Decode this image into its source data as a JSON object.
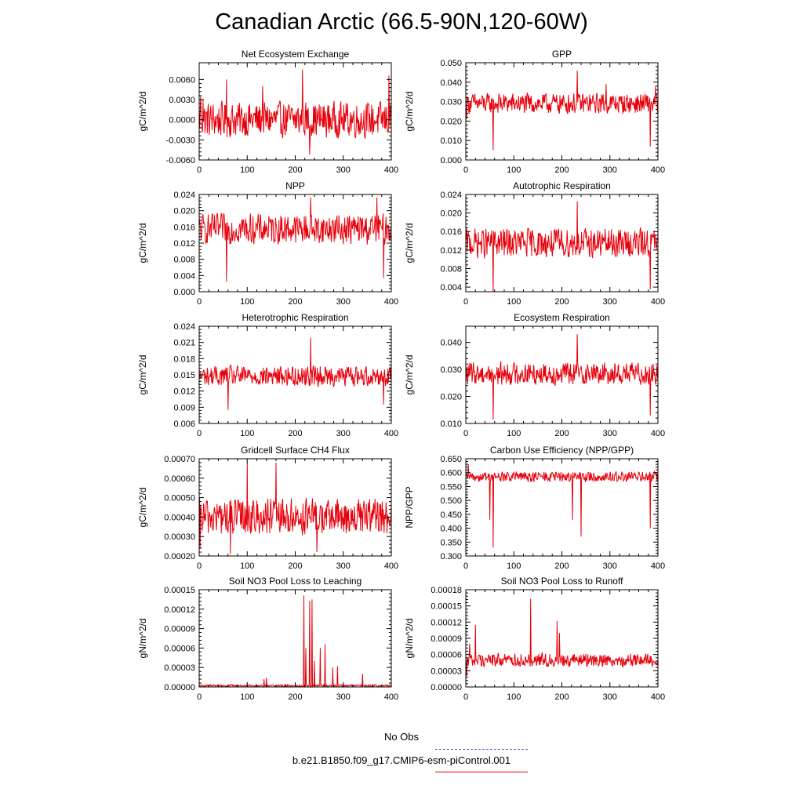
{
  "title": "Canadian Arctic (66.5-90N,120-60W)",
  "legend": {
    "obs_label": "No Obs",
    "obs_color": "#4444ee",
    "model_label": "b.e21.B1850.f09_g17.CMIP6-esm-piControl.001",
    "model_color": "#e8000b"
  },
  "chart_data": [
    {
      "type": "line",
      "title": "Net Ecosystem Exchange",
      "ylabel": "gC/m^2/d",
      "xlim": [
        0,
        400
      ],
      "ylim": [
        -0.006,
        0.0085
      ],
      "yticks": [
        -0.006,
        -0.003,
        0.0,
        0.003,
        0.006
      ],
      "ytick_labels": [
        "-0.0060",
        "-0.0030",
        "0.0000",
        "0.0030",
        "0.0060"
      ],
      "xticks": [
        0,
        100,
        200,
        300,
        400
      ],
      "xtick_labels": [
        "0",
        "100",
        "200",
        "300",
        "400"
      ],
      "series": [
        {
          "values": {
            "baseline": 0.0,
            "noise": 0.0025,
            "spikes": [
              [
                3,
                0.0035
              ],
              [
                8,
                0.003
              ],
              [
                57,
                0.006
              ],
              [
                132,
                0.005
              ],
              [
                215,
                0.0075
              ],
              [
                230,
                -0.0052
              ],
              [
                395,
                0.0066
              ]
            ]
          }
        }
      ]
    },
    {
      "type": "line",
      "title": "GPP",
      "ylabel": "gC/m^2/d",
      "xlim": [
        0,
        400
      ],
      "ylim": [
        0.0,
        0.05
      ],
      "yticks": [
        0.0,
        0.01,
        0.02,
        0.03,
        0.04,
        0.05
      ],
      "ytick_labels": [
        "0.000",
        "0.010",
        "0.020",
        "0.030",
        "0.040",
        "0.050"
      ],
      "xticks": [
        0,
        100,
        200,
        300,
        400
      ],
      "xtick_labels": [
        "0",
        "100",
        "200",
        "300",
        "400"
      ],
      "series": [
        {
          "values": {
            "baseline": 0.029,
            "noise": 0.005,
            "spikes": [
              [
                2,
                0.021
              ],
              [
                57,
                0.005
              ],
              [
                232,
                0.046
              ],
              [
                292,
                0.039
              ],
              [
                384,
                0.007
              ],
              [
                395,
                0.038
              ]
            ]
          }
        }
      ]
    },
    {
      "type": "line",
      "title": "NPP",
      "ylabel": "gC/m^2/d",
      "xlim": [
        0,
        400
      ],
      "ylim": [
        0.0,
        0.024
      ],
      "yticks": [
        0.0,
        0.004,
        0.008,
        0.012,
        0.016,
        0.02,
        0.024
      ],
      "ytick_labels": [
        "0.000",
        "0.004",
        "0.008",
        "0.012",
        "0.016",
        "0.020",
        "0.024"
      ],
      "xticks": [
        0,
        100,
        200,
        300,
        400
      ],
      "xtick_labels": [
        "0",
        "100",
        "200",
        "300",
        "400"
      ],
      "series": [
        {
          "values": {
            "baseline": 0.0155,
            "noise": 0.0035,
            "spikes": [
              [
                57,
                0.0025
              ],
              [
                232,
                0.0233
              ],
              [
                370,
                0.0233
              ],
              [
                384,
                0.0034
              ]
            ]
          }
        }
      ]
    },
    {
      "type": "line",
      "title": "Autotrophic Respiration",
      "ylabel": "gC/m^2/d",
      "xlim": [
        0,
        400
      ],
      "ylim": [
        0.003,
        0.024
      ],
      "yticks": [
        0.004,
        0.008,
        0.012,
        0.016,
        0.02,
        0.024
      ],
      "ytick_labels": [
        "0.004",
        "0.008",
        "0.012",
        "0.016",
        "0.020",
        "0.024"
      ],
      "xticks": [
        0,
        100,
        200,
        300,
        400
      ],
      "xtick_labels": [
        "0",
        "100",
        "200",
        "300",
        "400"
      ],
      "series": [
        {
          "values": {
            "baseline": 0.0135,
            "noise": 0.003,
            "spikes": [
              [
                57,
                0.003
              ],
              [
                232,
                0.0225
              ],
              [
                384,
                0.0035
              ]
            ]
          }
        }
      ]
    },
    {
      "type": "line",
      "title": "Heterotrophic Respiration",
      "ylabel": "gC/m^2/d",
      "xlim": [
        0,
        400
      ],
      "ylim": [
        0.006,
        0.024
      ],
      "yticks": [
        0.006,
        0.009,
        0.012,
        0.015,
        0.018,
        0.021,
        0.024
      ],
      "ytick_labels": [
        "0.006",
        "0.009",
        "0.012",
        "0.015",
        "0.018",
        "0.021",
        "0.024"
      ],
      "xticks": [
        0,
        100,
        200,
        300,
        400
      ],
      "xtick_labels": [
        "0",
        "100",
        "200",
        "300",
        "400"
      ],
      "series": [
        {
          "values": {
            "baseline": 0.0148,
            "noise": 0.0018,
            "spikes": [
              [
                60,
                0.0085
              ],
              [
                232,
                0.0219
              ],
              [
                384,
                0.0095
              ]
            ]
          }
        }
      ]
    },
    {
      "type": "line",
      "title": "Ecosystem Respiration",
      "ylabel": "gC/m^2/d",
      "xlim": [
        0,
        400
      ],
      "ylim": [
        0.01,
        0.046
      ],
      "yticks": [
        0.01,
        0.02,
        0.03,
        0.04
      ],
      "ytick_labels": [
        "0.010",
        "0.020",
        "0.030",
        "0.040"
      ],
      "xticks": [
        0,
        100,
        200,
        300,
        400
      ],
      "xtick_labels": [
        "0",
        "100",
        "200",
        "300",
        "400"
      ],
      "series": [
        {
          "values": {
            "baseline": 0.0285,
            "noise": 0.004,
            "spikes": [
              [
                57,
                0.0115
              ],
              [
                232,
                0.043
              ],
              [
                384,
                0.013
              ]
            ]
          }
        }
      ]
    },
    {
      "type": "line",
      "title": "Gridcell Surface CH4 Flux",
      "ylabel": "gC/m^2/d",
      "xlim": [
        0,
        400
      ],
      "ylim": [
        0.0002,
        0.0007
      ],
      "yticks": [
        0.0002,
        0.0003,
        0.0004,
        0.0005,
        0.0006,
        0.0007
      ],
      "ytick_labels": [
        "0.00020",
        "0.00030",
        "0.00040",
        "0.00050",
        "0.00060",
        "0.00070"
      ],
      "xticks": [
        0,
        100,
        200,
        300,
        400
      ],
      "xtick_labels": [
        "0",
        "100",
        "200",
        "300",
        "400"
      ],
      "series": [
        {
          "values": {
            "baseline": 0.0004,
            "noise": 9e-05,
            "spikes": [
              [
                2,
                0.00024
              ],
              [
                65,
                0.00021
              ],
              [
                100,
                0.00068
              ],
              [
                160,
                0.00068
              ],
              [
                245,
                0.00022
              ]
            ]
          }
        }
      ]
    },
    {
      "type": "line",
      "title": "Carbon Use Efficiency (NPP/GPP)",
      "ylabel": "NPP/GPP",
      "xlim": [
        0,
        400
      ],
      "ylim": [
        0.3,
        0.65
      ],
      "yticks": [
        0.3,
        0.35,
        0.4,
        0.45,
        0.5,
        0.55,
        0.6,
        0.65
      ],
      "ytick_labels": [
        "0.300",
        "0.350",
        "0.400",
        "0.450",
        "0.500",
        "0.550",
        "0.600",
        "0.650"
      ],
      "xticks": [
        0,
        100,
        200,
        300,
        400
      ],
      "xtick_labels": [
        "0",
        "100",
        "200",
        "300",
        "400"
      ],
      "series": [
        {
          "values": {
            "baseline": 0.585,
            "noise": 0.018,
            "spikes": [
              [
                5,
                0.63
              ],
              [
                57,
                0.33
              ],
              [
                50,
                0.43
              ],
              [
                240,
                0.37
              ],
              [
                384,
                0.4
              ],
              [
                222,
                0.43
              ]
            ]
          }
        }
      ]
    },
    {
      "type": "line",
      "title": "Soil NO3 Pool Loss to Leaching",
      "ylabel": "gN/m^2/d",
      "xlim": [
        0,
        400
      ],
      "ylim": [
        0.0,
        0.00015
      ],
      "yticks": [
        0.0,
        3e-05,
        6e-05,
        9e-05,
        0.00012,
        0.00015
      ],
      "ytick_labels": [
        "0.00000",
        "0.00003",
        "0.00006",
        "0.00009",
        "0.00012",
        "0.00015"
      ],
      "xticks": [
        0,
        100,
        200,
        300,
        400
      ],
      "xtick_labels": [
        "0",
        "100",
        "200",
        "300",
        "400"
      ],
      "series": [
        {
          "values": {
            "baseline": 2e-06,
            "noise": 1.5e-06,
            "spikes": [
              [
                135,
                1.2e-05
              ],
              [
                140,
                1.4e-05
              ],
              [
                218,
                0.000141
              ],
              [
                222,
                6e-05
              ],
              [
                230,
                0.000133
              ],
              [
                235,
                0.000135
              ],
              [
                240,
                4e-05
              ],
              [
                252,
                6e-05
              ],
              [
                262,
                6.6e-05
              ],
              [
                278,
                3e-05
              ],
              [
                288,
                3.2e-05
              ],
              [
                340,
                2e-05
              ]
            ]
          }
        }
      ]
    },
    {
      "type": "line",
      "title": "Soil NO3 Pool Loss to Runoff",
      "ylabel": "gN/m^2/d",
      "xlim": [
        0,
        400
      ],
      "ylim": [
        0.0,
        0.00018
      ],
      "yticks": [
        0.0,
        3e-05,
        6e-05,
        9e-05,
        0.00012,
        0.00015,
        0.00018
      ],
      "ytick_labels": [
        "0.00000",
        "0.00003",
        "0.00006",
        "0.00009",
        "0.00012",
        "0.00015",
        "0.00018"
      ],
      "xticks": [
        0,
        100,
        200,
        300,
        400
      ],
      "xtick_labels": [
        "0",
        "100",
        "200",
        "300",
        "400"
      ],
      "series": [
        {
          "values": {
            "baseline": 5e-05,
            "noise": 1.2e-05,
            "spikes": [
              [
                2,
                2e-05
              ],
              [
                8,
                8e-05
              ],
              [
                20,
                0.000115
              ],
              [
                135,
                0.000163
              ],
              [
                190,
                0.000122
              ],
              [
                195,
                0.0001
              ]
            ]
          }
        }
      ]
    }
  ]
}
